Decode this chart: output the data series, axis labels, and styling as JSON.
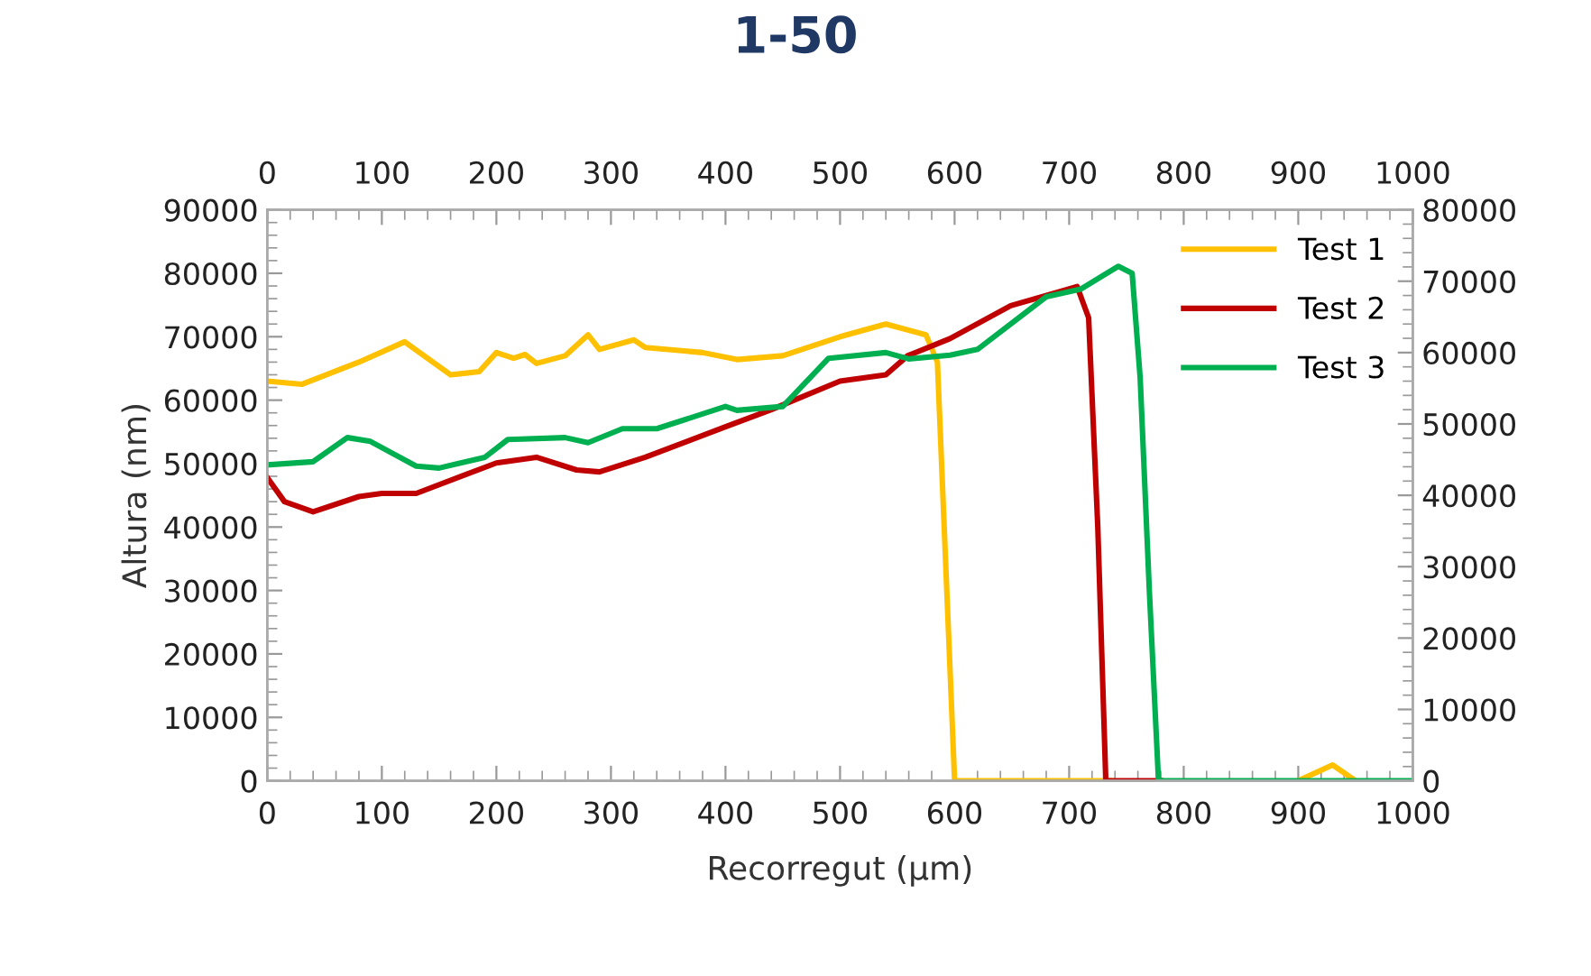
{
  "chart_data": {
    "type": "line",
    "title": "1-50",
    "xlabel": "Recorregut (µm)",
    "ylabel": "Altura (nm)",
    "xlim": [
      0,
      1000
    ],
    "xticks": [
      0,
      100,
      200,
      300,
      400,
      500,
      600,
      700,
      800,
      900,
      1000
    ],
    "x2lim": [
      0,
      1000
    ],
    "x2ticks": [
      0,
      100,
      200,
      300,
      400,
      500,
      600,
      700,
      800,
      900,
      1000
    ],
    "ylim": [
      0,
      90000
    ],
    "yticks": [
      0,
      10000,
      20000,
      30000,
      40000,
      50000,
      60000,
      70000,
      80000,
      90000
    ],
    "y2lim": [
      0,
      80000
    ],
    "y2ticks": [
      0,
      10000,
      20000,
      30000,
      40000,
      50000,
      60000,
      70000,
      80000
    ],
    "grid": false,
    "legend": "top right",
    "marker": "none",
    "line_style": "solid",
    "series": [
      {
        "name": "Test 1",
        "color": "#ffc000",
        "x": [
          0,
          30,
          80,
          120,
          160,
          185,
          200,
          215,
          225,
          235,
          260,
          280,
          290,
          320,
          330,
          380,
          410,
          450,
          500,
          540,
          575,
          585,
          600,
          735,
          null,
          900,
          930,
          950
        ],
        "values": [
          63000,
          62500,
          66000,
          69200,
          64000,
          64500,
          67500,
          66600,
          67200,
          65800,
          67000,
          70300,
          68000,
          69500,
          68300,
          67500,
          66400,
          67000,
          70000,
          72000,
          70300,
          66000,
          0,
          0,
          null,
          0,
          2500,
          0
        ]
      },
      {
        "name": "Test 2",
        "color": "#c00000",
        "x": [
          0,
          15,
          40,
          80,
          100,
          130,
          200,
          235,
          270,
          290,
          330,
          400,
          440,
          500,
          540,
          559,
          596,
          649,
          690,
          707,
          717,
          725,
          732,
          780
        ],
        "values": [
          47800,
          44000,
          42400,
          44800,
          45300,
          45300,
          50100,
          51000,
          49000,
          48700,
          51000,
          55800,
          58500,
          63000,
          64000,
          67000,
          69700,
          74900,
          77000,
          77900,
          73000,
          40000,
          0,
          0
        ]
      },
      {
        "name": "Test 3",
        "color": "#00b050",
        "x": [
          0,
          40,
          70,
          90,
          130,
          150,
          190,
          210,
          260,
          280,
          310,
          340,
          400,
          410,
          450,
          490,
          540,
          560,
          596,
          620,
          680,
          710,
          743,
          755,
          762,
          770,
          778,
          1000
        ],
        "values": [
          49800,
          50300,
          54100,
          53500,
          49600,
          49300,
          51000,
          53800,
          54100,
          53300,
          55500,
          55500,
          59000,
          58400,
          59000,
          66600,
          67500,
          66500,
          67100,
          68000,
          76300,
          77500,
          81100,
          80000,
          63500,
          30000,
          0,
          0
        ]
      }
    ]
  }
}
